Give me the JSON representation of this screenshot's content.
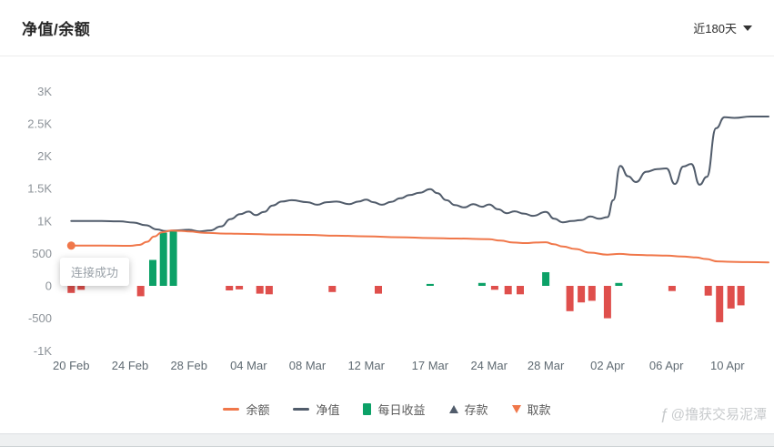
{
  "header": {
    "title": "净值/余额",
    "range": "近180天"
  },
  "tooltip": {
    "text": "连接成功"
  },
  "watermark": {
    "icon": "ƒ",
    "text": "@撸获交易泥潭"
  },
  "legend": {
    "items": [
      {
        "label": "余额",
        "type": "line",
        "color": "#F0774A"
      },
      {
        "label": "净值",
        "type": "line",
        "color": "#515C6B"
      },
      {
        "label": "每日收益",
        "type": "bar",
        "color": "#0CA167"
      },
      {
        "label": "存款",
        "type": "triangle-up",
        "color": "#515C6B"
      },
      {
        "label": "取款",
        "type": "triangle-down",
        "color": "#F0774A"
      }
    ]
  },
  "chart_data": {
    "type": "mixed",
    "title": "净值/余额",
    "ylim": [
      -1000,
      3000
    ],
    "grid": false,
    "legend_position": "bottom",
    "yticks": [
      {
        "label": "3K",
        "v": 3000
      },
      {
        "label": "2.5K",
        "v": 2500
      },
      {
        "label": "2K",
        "v": 2000
      },
      {
        "label": "1.5K",
        "v": 1500
      },
      {
        "label": "1K",
        "v": 1000
      },
      {
        "label": "500",
        "v": 500
      },
      {
        "label": "0",
        "v": 0
      },
      {
        "label": "-500",
        "v": -500
      },
      {
        "label": "-1K",
        "v": -1000
      }
    ],
    "xticks": [
      {
        "label": "20 Feb",
        "f": 0.017
      },
      {
        "label": "24 Feb",
        "f": 0.1
      },
      {
        "label": "28 Feb",
        "f": 0.183
      },
      {
        "label": "04 Mar",
        "f": 0.267
      },
      {
        "label": "08 Mar",
        "f": 0.35
      },
      {
        "label": "12 Mar",
        "f": 0.433
      },
      {
        "label": "17 Mar",
        "f": 0.523
      },
      {
        "label": "24 Mar",
        "f": 0.606
      },
      {
        "label": "28 Mar",
        "f": 0.686
      },
      {
        "label": "02 Apr",
        "f": 0.773
      },
      {
        "label": "06 Apr",
        "f": 0.856
      },
      {
        "label": "10 Apr",
        "f": 0.942
      }
    ],
    "series": [
      {
        "name": "每日收益",
        "type": "bar",
        "color_pos": "#0CA167",
        "color_neg": "#DF4F4C",
        "points": [
          [
            0.017,
            -110
          ],
          [
            0.031,
            -60
          ],
          [
            0.115,
            -160
          ],
          [
            0.132,
            400
          ],
          [
            0.147,
            820
          ],
          [
            0.161,
            855
          ],
          [
            0.24,
            -70
          ],
          [
            0.254,
            -55
          ],
          [
            0.283,
            -120
          ],
          [
            0.296,
            -130
          ],
          [
            0.385,
            -95
          ],
          [
            0.45,
            -120
          ],
          [
            0.523,
            30
          ],
          [
            0.596,
            45
          ],
          [
            0.614,
            -60
          ],
          [
            0.633,
            -130
          ],
          [
            0.65,
            -130
          ],
          [
            0.686,
            210
          ],
          [
            0.72,
            -390
          ],
          [
            0.736,
            -255
          ],
          [
            0.751,
            -230
          ],
          [
            0.773,
            -500
          ],
          [
            0.789,
            45
          ],
          [
            0.864,
            -80
          ],
          [
            0.915,
            -150
          ],
          [
            0.931,
            -560
          ],
          [
            0.947,
            -350
          ],
          [
            0.961,
            -300
          ]
        ]
      },
      {
        "name": "净值",
        "type": "line",
        "color": "#515C6B",
        "points": [
          [
            0.017,
            1000
          ],
          [
            0.06,
            1000
          ],
          [
            0.085,
            995
          ],
          [
            0.105,
            975
          ],
          [
            0.122,
            935
          ],
          [
            0.138,
            870
          ],
          [
            0.15,
            845
          ],
          [
            0.163,
            855
          ],
          [
            0.183,
            865
          ],
          [
            0.198,
            840
          ],
          [
            0.213,
            855
          ],
          [
            0.228,
            915
          ],
          [
            0.242,
            1030
          ],
          [
            0.255,
            1105
          ],
          [
            0.267,
            1145
          ],
          [
            0.277,
            1090
          ],
          [
            0.289,
            1140
          ],
          [
            0.301,
            1240
          ],
          [
            0.314,
            1300
          ],
          [
            0.328,
            1320
          ],
          [
            0.35,
            1290
          ],
          [
            0.364,
            1250
          ],
          [
            0.377,
            1290
          ],
          [
            0.391,
            1300
          ],
          [
            0.409,
            1260
          ],
          [
            0.422,
            1300
          ],
          [
            0.433,
            1330
          ],
          [
            0.443,
            1290
          ],
          [
            0.455,
            1250
          ],
          [
            0.468,
            1295
          ],
          [
            0.481,
            1350
          ],
          [
            0.494,
            1400
          ],
          [
            0.508,
            1435
          ],
          [
            0.523,
            1490
          ],
          [
            0.533,
            1430
          ],
          [
            0.546,
            1320
          ],
          [
            0.558,
            1245
          ],
          [
            0.571,
            1210
          ],
          [
            0.584,
            1260
          ],
          [
            0.596,
            1220
          ],
          [
            0.606,
            1255
          ],
          [
            0.619,
            1180
          ],
          [
            0.631,
            1120
          ],
          [
            0.642,
            1150
          ],
          [
            0.655,
            1115
          ],
          [
            0.668,
            1080
          ],
          [
            0.686,
            1140
          ],
          [
            0.698,
            1035
          ],
          [
            0.71,
            980
          ],
          [
            0.723,
            1000
          ],
          [
            0.736,
            1015
          ],
          [
            0.749,
            1070
          ],
          [
            0.761,
            1035
          ],
          [
            0.773,
            1060
          ],
          [
            0.781,
            1320
          ],
          [
            0.791,
            1850
          ],
          [
            0.802,
            1690
          ],
          [
            0.813,
            1600
          ],
          [
            0.828,
            1760
          ],
          [
            0.843,
            1800
          ],
          [
            0.856,
            1810
          ],
          [
            0.868,
            1570
          ],
          [
            0.88,
            1840
          ],
          [
            0.891,
            1880
          ],
          [
            0.903,
            1560
          ],
          [
            0.913,
            1680
          ],
          [
            0.926,
            2430
          ],
          [
            0.938,
            2600
          ],
          [
            0.952,
            2590
          ],
          [
            0.975,
            2610
          ],
          [
            1.0,
            2610
          ]
        ]
      },
      {
        "name": "余额",
        "type": "line",
        "color": "#F0774A",
        "points": [
          [
            0.017,
            620
          ],
          [
            0.06,
            620
          ],
          [
            0.1,
            618
          ],
          [
            0.113,
            632
          ],
          [
            0.124,
            680
          ],
          [
            0.134,
            760
          ],
          [
            0.145,
            825
          ],
          [
            0.158,
            852
          ],
          [
            0.172,
            848
          ],
          [
            0.183,
            838
          ],
          [
            0.205,
            818
          ],
          [
            0.235,
            806
          ],
          [
            0.267,
            800
          ],
          [
            0.3,
            792
          ],
          [
            0.35,
            786
          ],
          [
            0.391,
            774
          ],
          [
            0.433,
            763
          ],
          [
            0.48,
            750
          ],
          [
            0.523,
            737
          ],
          [
            0.56,
            730
          ],
          [
            0.606,
            718
          ],
          [
            0.622,
            698
          ],
          [
            0.64,
            668
          ],
          [
            0.658,
            660
          ],
          [
            0.672,
            668
          ],
          [
            0.686,
            672
          ],
          [
            0.697,
            642
          ],
          [
            0.71,
            606
          ],
          [
            0.728,
            568
          ],
          [
            0.748,
            512
          ],
          [
            0.773,
            482
          ],
          [
            0.79,
            492
          ],
          [
            0.81,
            478
          ],
          [
            0.835,
            472
          ],
          [
            0.856,
            466
          ],
          [
            0.878,
            452
          ],
          [
            0.898,
            438
          ],
          [
            0.912,
            414
          ],
          [
            0.928,
            378
          ],
          [
            0.942,
            372
          ],
          [
            0.97,
            366
          ],
          [
            1.0,
            362
          ]
        ]
      }
    ],
    "marker": {
      "series": "余额",
      "f": 0.017,
      "v": 620,
      "color": "#F0774A"
    }
  }
}
